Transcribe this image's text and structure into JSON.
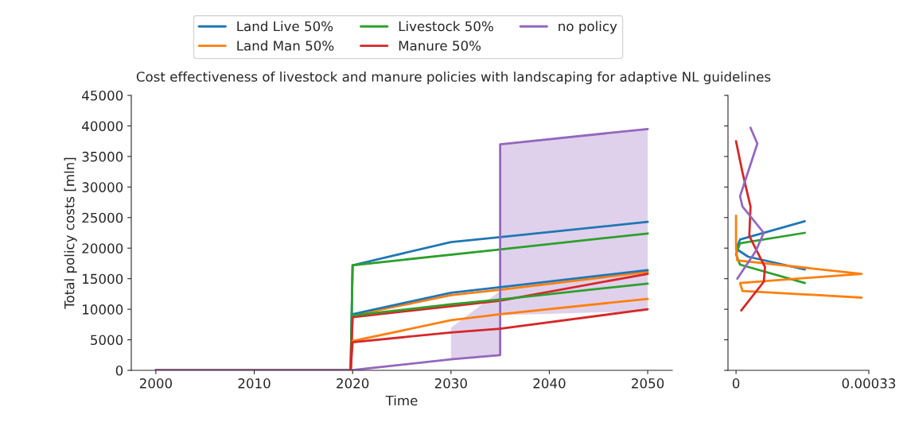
{
  "chart_data": [
    {
      "type": "line",
      "title": "Cost effectiveness of livestock and manure policies with landscaping for adaptive NL guidelines",
      "xlabel": "Time",
      "ylabel": "Total policy costs [mln]",
      "xlim": [
        1997.5,
        2052.5
      ],
      "xticks": [
        2000,
        2010,
        2020,
        2030,
        2040,
        2050
      ],
      "ylim": [
        0,
        45000
      ],
      "yticks": [
        0,
        5000,
        10000,
        15000,
        20000,
        25000,
        30000,
        35000,
        40000,
        45000
      ],
      "grid": false,
      "legend": "top",
      "series": [
        {
          "name": "Land Live 50%",
          "color": "#1f77b4",
          "x": [
            2000,
            2019.8,
            2020,
            2030,
            2035,
            2050
          ],
          "values": [
            0,
            0,
            17200,
            21000,
            21800,
            24300
          ]
        },
        {
          "name": "Land Man 50%",
          "color": "#ff7f0e",
          "x": [
            2000,
            2019.8,
            2020,
            2030,
            2035,
            2050
          ],
          "values": [
            0,
            0,
            9000,
            12300,
            13200,
            16100
          ]
        },
        {
          "name": "Livestock 50%",
          "color": "#2ca02c",
          "x": [
            2000,
            2019.8,
            2020,
            2035,
            2050
          ],
          "values": [
            0,
            0,
            17200,
            19800,
            22400
          ]
        },
        {
          "name": "Manure 50%",
          "color": "#d62728",
          "x": [
            2000,
            2019.8,
            2020,
            2030,
            2035,
            2050
          ],
          "values": [
            0,
            0,
            8700,
            10500,
            11400,
            15800
          ]
        },
        {
          "name": "no policy",
          "color": "#9467bd",
          "x": [
            2000,
            2019.8,
            2030,
            2035,
            2035,
            2050
          ],
          "values": [
            0,
            0,
            1800,
            2500,
            37000,
            39500
          ],
          "lower": [
            null,
            null,
            1800,
            2500,
            9000,
            9700
          ],
          "upper": [
            null,
            null,
            7000,
            13000,
            37000,
            39500
          ]
        },
        {
          "color": "#1f77b4",
          "x": [
            2020,
            2030,
            2035,
            2050
          ],
          "values": [
            9200,
            12700,
            13600,
            16400
          ]
        },
        {
          "color": "#2ca02c",
          "x": [
            2020,
            2030,
            2035,
            2050
          ],
          "values": [
            9000,
            10800,
            11600,
            14200
          ]
        },
        {
          "color": "#ff7f0e",
          "x": [
            2020,
            2030,
            2035,
            2050
          ],
          "values": [
            4800,
            8200,
            9200,
            11700
          ]
        },
        {
          "color": "#d62728",
          "x": [
            2019.8,
            2020,
            2030,
            2035,
            2050
          ],
          "values": [
            0,
            4600,
            6200,
            6800,
            10000
          ]
        }
      ]
    },
    {
      "type": "line",
      "xlim": [
        -2e-05,
        0.00033
      ],
      "xticks": [
        0,
        0.00033
      ],
      "ylim": [
        0,
        45000
      ],
      "yticks": [
        0,
        5000,
        10000,
        15000,
        20000,
        25000,
        30000,
        35000,
        40000,
        45000
      ],
      "tick_labels": "x",
      "grid": false,
      "series": [
        {
          "color": "#1f77b4",
          "x": [
            0.000171,
            1e-05,
            0,
            3e-05,
            0.000171
          ],
          "values": [
            24400,
            21400,
            19900,
            18600,
            16500
          ]
        },
        {
          "color": "#2ca02c",
          "x": [
            0.000171,
            1e-05,
            0,
            1e-05,
            0.000171
          ],
          "values": [
            22500,
            20800,
            19000,
            17300,
            14300
          ]
        },
        {
          "color": "#ff7f0e",
          "x": [
            0,
            0,
            3e-06,
            0.000312,
            1e-05,
            1.6e-05,
            0.000312
          ],
          "values": [
            25300,
            20300,
            18000,
            15800,
            14300,
            13000,
            11900
          ]
        },
        {
          "color": "#d62728",
          "x": [
            0,
            1.6e-05,
            3.6e-05,
            3.3e-05,
            7.2e-05,
            6.9e-05,
            1.3e-05
          ],
          "values": [
            37500,
            32400,
            26800,
            22000,
            16900,
            14500,
            9800
          ]
        },
        {
          "color": "#9467bd",
          "x": [
            3.6e-05,
            5.3e-05,
            1e-05,
            1.6e-05,
            6.9e-05,
            4.9e-05,
            3e-06
          ],
          "values": [
            39700,
            37100,
            28500,
            26800,
            22500,
            19500,
            15000
          ]
        }
      ]
    }
  ]
}
